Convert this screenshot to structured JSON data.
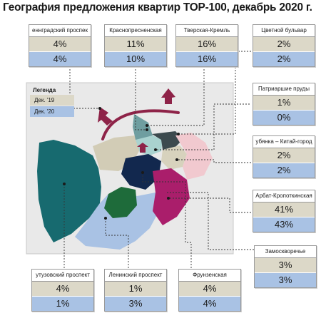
{
  "title": "География предложения квартир ТОР-100, декабрь 2020 г.",
  "legend": {
    "title": "Легенда",
    "series": [
      {
        "label": "Дек. '19",
        "color": "#dcd8c8"
      },
      {
        "label": "Дек. '20",
        "color": "#a9c2e4"
      }
    ]
  },
  "colors": {
    "dec19": "#dcd8c8",
    "dec20": "#a9c2e4",
    "marker_arrow": "#8e2348",
    "curve": "#8e2348"
  },
  "districts": [
    {
      "key": "leningradsky",
      "name": "еннградский проспек",
      "dec19": "4%",
      "dec20": "4%"
    },
    {
      "key": "krasnopresnenskaya",
      "name": "Краснопресненская",
      "dec19": "11%",
      "dec20": "10%"
    },
    {
      "key": "tverskaya",
      "name": "Тверская-Кремль",
      "dec19": "16%",
      "dec20": "16%"
    },
    {
      "key": "tsvetnoy",
      "name": "Цветной бульвар",
      "dec19": "2%",
      "dec20": "2%"
    },
    {
      "key": "patriarshie",
      "name": "Патриаршие пруды",
      "dec19": "1%",
      "dec20": "0%"
    },
    {
      "key": "lubyanka",
      "name": "убянка – Китай-город",
      "dec19": "2%",
      "dec20": "2%"
    },
    {
      "key": "arbat",
      "name": "Арбат-Кропоткинская",
      "dec19": "41%",
      "dec20": "43%"
    },
    {
      "key": "zamoskvorechye",
      "name": "Замоскворечье",
      "dec19": "3%",
      "dec20": "3%"
    },
    {
      "key": "kutuzovsky",
      "name": "утузовский проспект",
      "dec19": "4%",
      "dec20": "1%"
    },
    {
      "key": "leninsky",
      "name": "Ленинский проспект",
      "dec19": "1%",
      "dec20": "3%"
    },
    {
      "key": "frunzenskaya",
      "name": "Фрунзенская",
      "dec19": "4%",
      "dec20": "4%"
    }
  ]
}
